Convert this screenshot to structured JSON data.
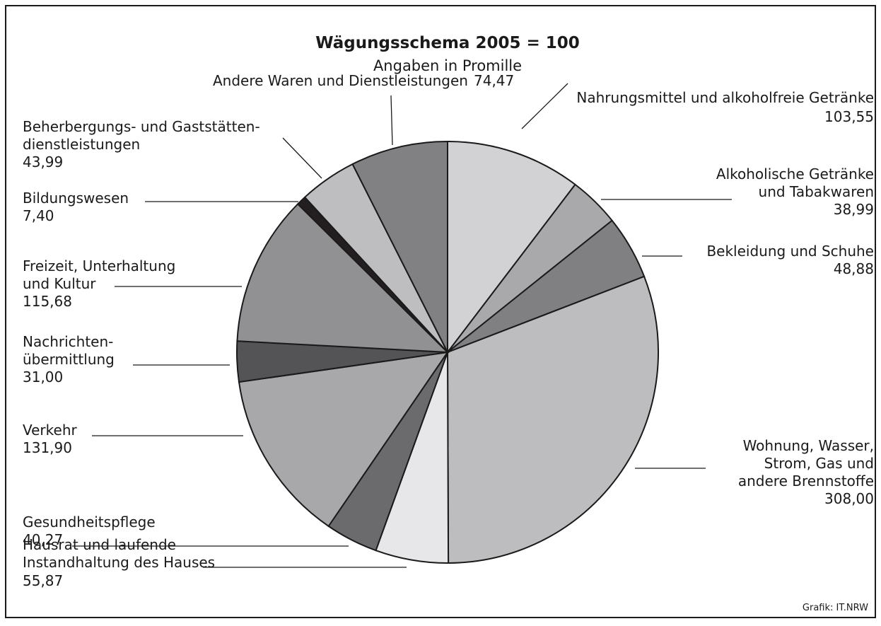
{
  "chart_data": {
    "type": "pie",
    "title": "Wägungsschema 2005 = 100",
    "subtitle": "Angaben in Promille",
    "categories": [
      "Nahrungsmittel und alkoholfreie Getränke",
      "Alkoholische Getränke\nund Tabakwaren",
      "Bekleidung und Schuhe",
      "Wohnung, Wasser,\nStrom, Gas und\nandere Brennstoffe",
      "Hausrat und laufende\nInstandhaltung des Hauses",
      "Gesundheitspflege",
      "Verkehr",
      "Nachrichten-\nübermittlung",
      "Freizeit, Unterhaltung\nund Kultur",
      "Bildungswesen",
      "Beherbergungs- und Gaststätten-\ndienstleistungen",
      "Andere Waren und Dienstleistungen"
    ],
    "values": [
      103.55,
      38.99,
      48.88,
      308.0,
      55.87,
      40.27,
      131.9,
      31.0,
      115.68,
      7.4,
      43.99,
      74.47
    ],
    "value_labels": [
      "103,55",
      "38,99",
      "48,88",
      "308,00",
      "55,87",
      "40,27",
      "131,90",
      "31,00",
      "115,68",
      "7,40",
      "43,99",
      "74,47"
    ],
    "colors": [
      "#d2d2d4",
      "#a9a9ab",
      "#808083",
      "#bdbdbf",
      "#e7e7e9",
      "#6b6b6e",
      "#a8a8ab",
      "#545457",
      "#919194",
      "#231f20",
      "#bebec0",
      "#818184"
    ],
    "credit": "Grafik: IT.NRW"
  }
}
